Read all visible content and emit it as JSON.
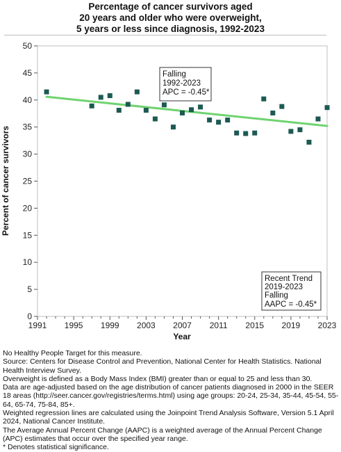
{
  "title_lines": [
    "Percentage of cancer survivors aged",
    "20 years and older who were overweight,",
    "5 years or less since diagnosis,  1992-2023"
  ],
  "chart_data": {
    "type": "scatter",
    "xlabel": "Year",
    "ylabel": "Percent of cancer survivors",
    "xlim": [
      1991,
      2023
    ],
    "ylim": [
      0,
      50
    ],
    "x_ticks": [
      1991,
      1995,
      1999,
      2003,
      2007,
      2011,
      2015,
      2019,
      2023
    ],
    "y_ticks": [
      0,
      5,
      10,
      15,
      20,
      25,
      30,
      35,
      40,
      45,
      50
    ],
    "grid": false,
    "colors": {
      "points": "#1c5a52",
      "trend": "#6fd36f"
    },
    "series": [
      {
        "values": [
          {
            "x": 1992,
            "y": 41.5
          },
          {
            "x": 1997,
            "y": 38.9
          },
          {
            "x": 1998,
            "y": 40.5
          },
          {
            "x": 1999,
            "y": 40.8
          },
          {
            "x": 2000,
            "y": 38.1
          },
          {
            "x": 2001,
            "y": 39.2
          },
          {
            "x": 2002,
            "y": 41.5
          },
          {
            "x": 2003,
            "y": 38.1
          },
          {
            "x": 2004,
            "y": 36.5
          },
          {
            "x": 2005,
            "y": 39.1
          },
          {
            "x": 2006,
            "y": 35.0
          },
          {
            "x": 2007,
            "y": 37.6
          },
          {
            "x": 2008,
            "y": 38.2
          },
          {
            "x": 2009,
            "y": 38.7
          },
          {
            "x": 2010,
            "y": 36.3
          },
          {
            "x": 2011,
            "y": 35.9
          },
          {
            "x": 2012,
            "y": 36.3
          },
          {
            "x": 2013,
            "y": 33.9
          },
          {
            "x": 2014,
            "y": 33.8
          },
          {
            "x": 2015,
            "y": 33.9
          },
          {
            "x": 2016,
            "y": 40.2
          },
          {
            "x": 2017,
            "y": 37.6
          },
          {
            "x": 2018,
            "y": 38.8
          },
          {
            "x": 2019,
            "y": 34.2
          },
          {
            "x": 2020,
            "y": 34.5
          },
          {
            "x": 2021,
            "y": 32.2
          },
          {
            "x": 2022,
            "y": 36.5
          },
          {
            "x": 2023,
            "y": 38.6
          }
        ]
      }
    ],
    "trend_line": {
      "start": {
        "x": 1992,
        "y": 40.6
      },
      "end": {
        "x": 2023,
        "y": 35.2
      }
    },
    "annotations": [
      {
        "lines": [
          "Falling",
          "1992-2023",
          "APC = -0.45*"
        ],
        "placement": "upper-middle"
      },
      {
        "lines": [
          "Recent Trend",
          "2019-2023",
          "Falling",
          "AAPC = -0.45*"
        ],
        "placement": "lower-right"
      }
    ]
  },
  "footnotes": [
    "No Healthy People Target for this measure.",
    "Source: Centers for Disease Control and Prevention, National Center for Health Statistics. National Health Interview Survey.",
    "Overweight is defined as a Body Mass Index (BMI) greater than or equal to 25 and less than 30.",
    "Data are age-adjusted based on the age distribution of cancer patients diagnosed in 2000 in the SEER 18 areas (http://seer.cancer.gov/registries/terms.html) using age groups: 20-24, 25-34, 35-44, 45-54, 55-64, 65-74, 75-84, 85+.",
    "Weighted regression lines are calculated using the Joinpoint Trend Analysis Software, Version 5.1 April 2024, National Cancer Institute.",
    "The Average Annual Percent Change (AAPC) is a weighted average of the Annual Percent Change (APC) estimates that occur over the specified year range.",
    "* Denotes statistical significance."
  ]
}
